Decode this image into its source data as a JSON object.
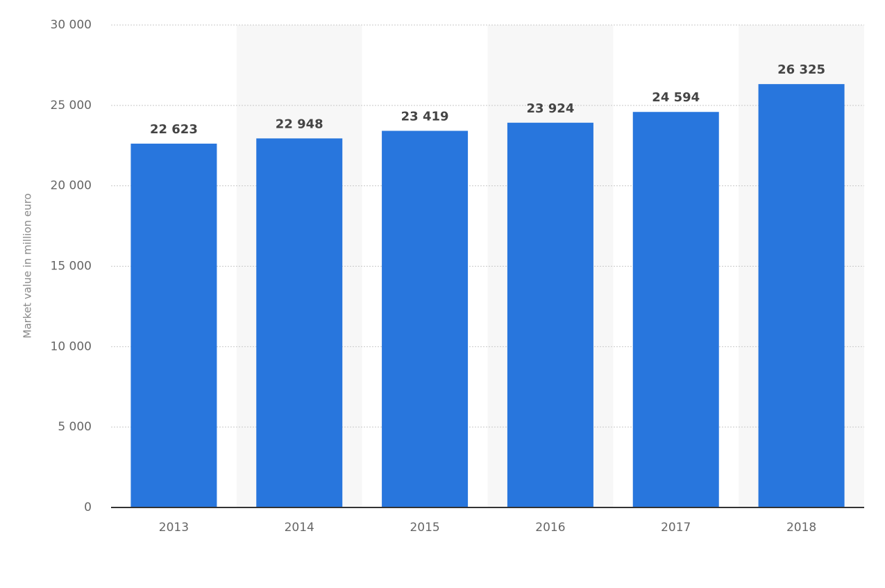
{
  "chart_data": {
    "type": "bar",
    "y_axis_label": "Market value in million euro",
    "categories": [
      "2013",
      "2014",
      "2015",
      "2016",
      "2017",
      "2018"
    ],
    "values": [
      22623,
      22948,
      23419,
      23924,
      24594,
      26325
    ],
    "value_labels": [
      "22 623",
      "22 948",
      "23 419",
      "23 924",
      "24 594",
      "26 325"
    ],
    "color": "#2876dd",
    "ylim": [
      0,
      30000
    ],
    "yticks": [
      0,
      {
        "value": 5000,
        "label": "5 000"
      },
      {
        "value": 10000,
        "label": "10 000"
      },
      {
        "value": 15000,
        "label": "15 000"
      },
      {
        "value": 20000,
        "label": "20 000"
      },
      {
        "value": 25000,
        "label": "25 000"
      },
      {
        "value": 30000,
        "label": "30 000"
      }
    ],
    "grid": true
  }
}
